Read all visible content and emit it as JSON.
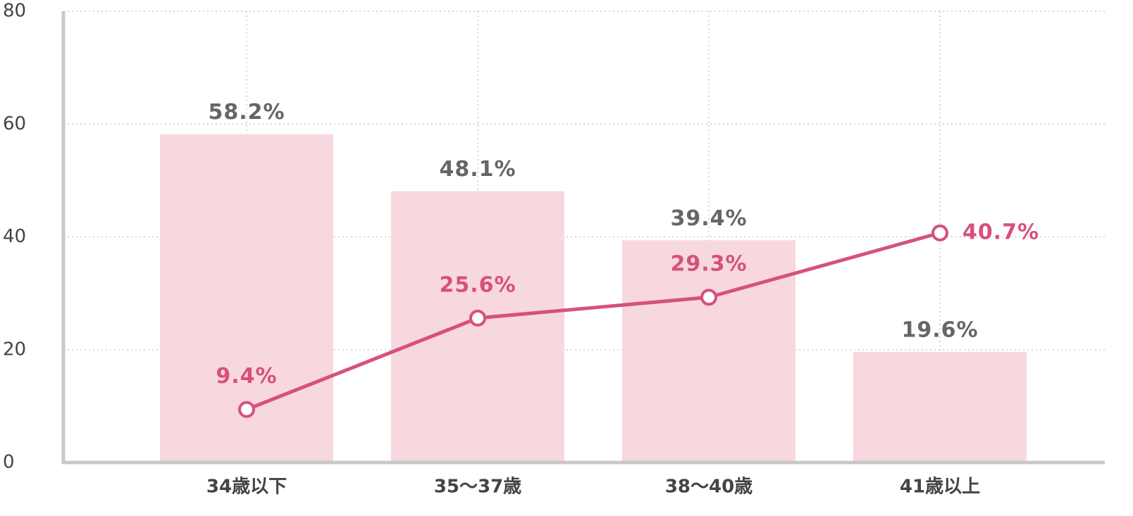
{
  "chart_data": {
    "type": "bar",
    "categories": [
      "34歳以下",
      "35〜37歳",
      "38〜40歳",
      "41歳以上"
    ],
    "series": [
      {
        "type": "bar",
        "color": "#f7d8de",
        "label_color": "#666666",
        "values": [
          58.2,
          48.1,
          39.4,
          19.6
        ],
        "value_labels": [
          "58.2%",
          "48.1%",
          "39.4%",
          "19.6%"
        ]
      },
      {
        "type": "line",
        "color": "#d6517c",
        "values": [
          9.4,
          25.6,
          29.3,
          40.7
        ],
        "value_labels": [
          "9.4%",
          "25.6%",
          "29.3%",
          "40.7%"
        ]
      }
    ],
    "ylim": [
      0,
      80
    ],
    "yticks": [
      0,
      20,
      40,
      60,
      80
    ],
    "grid": true
  }
}
